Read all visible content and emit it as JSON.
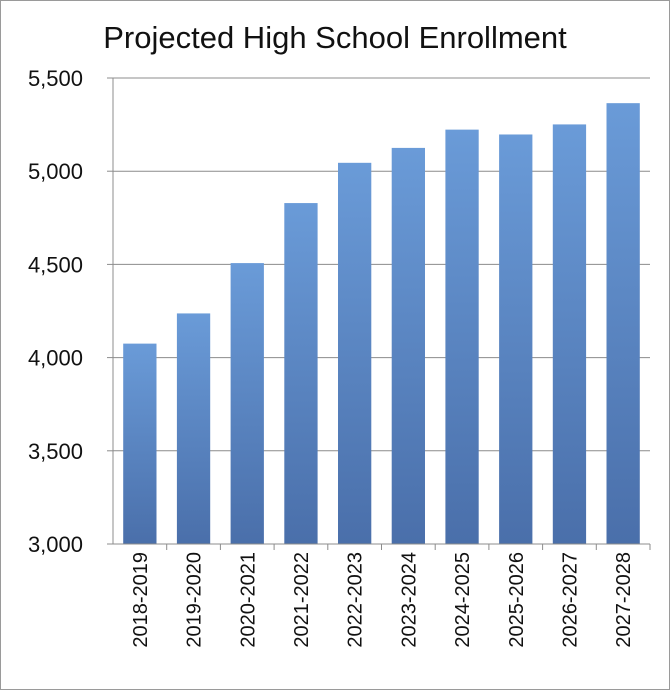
{
  "chart_data": {
    "type": "bar",
    "title": "Projected High School Enrollment",
    "xlabel": "",
    "ylabel": "",
    "categories": [
      "2018-2019",
      "2019-2020",
      "2020-2021",
      "2021-2022",
      "2022-2023",
      "2023-2024",
      "2024-2025",
      "2025-2026",
      "2026-2027",
      "2027-2028"
    ],
    "values": [
      4075,
      4237,
      4507,
      4829,
      5045,
      5125,
      5223,
      5197,
      5251,
      5365
    ],
    "ylim": [
      3000,
      5500
    ],
    "yticks": [
      3000,
      3500,
      4000,
      4500,
      5000,
      5500
    ],
    "ytick_labels": [
      "3,000",
      "3,500",
      "4,000",
      "4,500",
      "5,000",
      "5,500"
    ],
    "grid": true,
    "legend": "none",
    "colors": {
      "bar_light": "#6a9bd8",
      "bar_dark": "#4a6faa",
      "grid": "#8c8c8c",
      "axis": "#8c8c8c"
    }
  }
}
